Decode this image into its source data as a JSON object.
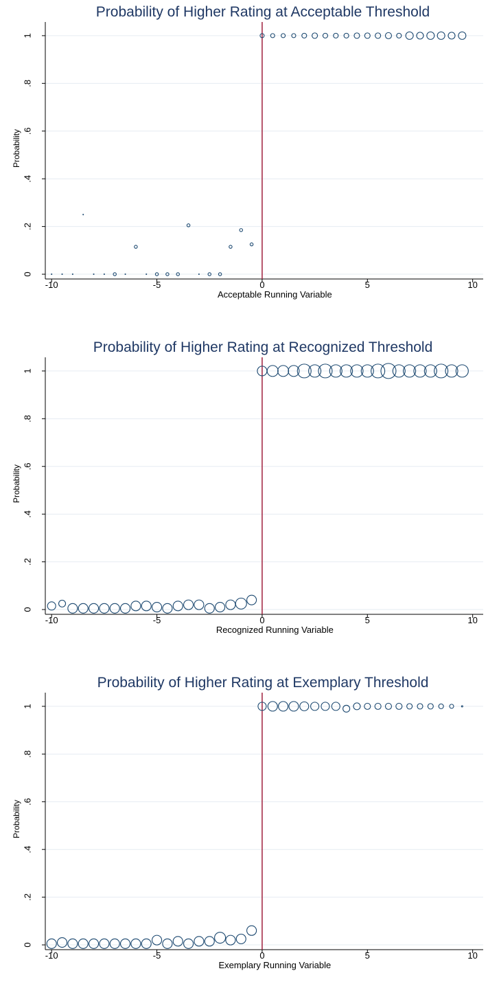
{
  "chart_data": [
    {
      "type": "scatter",
      "title": "Probability of Higher Rating at Acceptable Threshold",
      "xlabel": "Acceptable Running Variable",
      "ylabel": "Probability",
      "xlim": [
        -10.3,
        10.5
      ],
      "ylim": [
        -0.02,
        1.04
      ],
      "xticks": [
        -10,
        -5,
        0,
        5,
        10
      ],
      "xtick_labels": [
        "-10",
        "-5",
        "0",
        "5",
        "10"
      ],
      "yticks": [
        0,
        0.2,
        0.4,
        0.6,
        0.8,
        1
      ],
      "ytick_labels": [
        "0",
        ".2",
        ".4",
        ".6",
        ".8",
        "1"
      ],
      "grid": true,
      "cutoff": 0,
      "colors": {
        "markers": "#1a476f",
        "cutoff": "#a0203c",
        "title": "#1f3864",
        "grid": "#e6ecf2"
      },
      "points": {
        "x": [
          -10,
          -9.5,
          -9,
          -8.5,
          -8,
          -7.5,
          -7,
          -6.5,
          -6,
          -5.5,
          -5,
          -4.5,
          -4,
          -3.5,
          -3,
          -2.5,
          -2,
          -1.5,
          -1,
          -0.5,
          0,
          0.5,
          1,
          1.5,
          2,
          2.5,
          3,
          3.5,
          4,
          4.5,
          5,
          5.5,
          6,
          6.5,
          7,
          7.5,
          8,
          8.5,
          9,
          9.5
        ],
        "y": [
          0,
          0,
          0,
          0.25,
          0,
          0,
          0,
          0,
          0.115,
          0,
          0,
          0,
          0,
          0.205,
          0,
          0,
          0,
          0.115,
          0.185,
          0.125,
          1,
          1,
          1,
          1,
          1,
          1,
          1,
          1,
          1,
          1,
          1,
          1,
          1,
          1,
          1,
          1,
          1,
          1,
          1,
          1
        ],
        "size": [
          0.5,
          0.5,
          0.5,
          0.5,
          0.5,
          0.5,
          2.2,
          0.5,
          2.2,
          0.5,
          2.2,
          2.2,
          2.2,
          2.2,
          0.5,
          2.2,
          2.2,
          2.2,
          2.2,
          2.2,
          3,
          3,
          3,
          3,
          3.5,
          4,
          3.5,
          3.5,
          3.5,
          4,
          4,
          4,
          4.5,
          3.5,
          5.5,
          5,
          5.5,
          5.5,
          5,
          5.5
        ]
      }
    },
    {
      "type": "scatter",
      "title": "Probability of Higher Rating at Recognized Threshold",
      "xlabel": "Recognized Running Variable",
      "ylabel": "Probability",
      "xlim": [
        -10.3,
        10.5
      ],
      "ylim": [
        -0.02,
        1.04
      ],
      "xticks": [
        -10,
        -5,
        0,
        5,
        10
      ],
      "xtick_labels": [
        "-10",
        "-5",
        "0",
        "5",
        "10"
      ],
      "yticks": [
        0,
        0.2,
        0.4,
        0.6,
        0.8,
        1
      ],
      "ytick_labels": [
        "0",
        ".2",
        ".4",
        ".6",
        ".8",
        "1"
      ],
      "grid": true,
      "cutoff": 0,
      "colors": {
        "markers": "#1a476f",
        "cutoff": "#a0203c",
        "title": "#1f3864",
        "grid": "#e6ecf2"
      },
      "points": {
        "x": [
          -10,
          -9.5,
          -9,
          -8.5,
          -8,
          -7.5,
          -7,
          -6.5,
          -6,
          -5.5,
          -5,
          -4.5,
          -4,
          -3.5,
          -3,
          -2.5,
          -2,
          -1.5,
          -1,
          -0.5,
          0,
          0.5,
          1,
          1.5,
          2,
          2.5,
          3,
          3.5,
          4,
          4.5,
          5,
          5.5,
          6,
          6.5,
          7,
          7.5,
          8,
          8.5,
          9,
          9.5
        ],
        "y": [
          0.015,
          0.025,
          0.005,
          0.005,
          0.005,
          0.005,
          0.005,
          0.005,
          0.015,
          0.015,
          0.01,
          0.005,
          0.015,
          0.02,
          0.02,
          0.005,
          0.01,
          0.02,
          0.025,
          0.04,
          1,
          1,
          1,
          1,
          1,
          1,
          1,
          1,
          1,
          1,
          1,
          1,
          1,
          1,
          1,
          1,
          1,
          1,
          1,
          1
        ],
        "size": [
          6,
          5,
          7,
          7,
          7,
          7,
          7,
          7,
          7,
          7,
          7,
          7,
          7,
          7,
          7,
          7,
          7,
          7,
          8,
          7,
          7,
          8,
          8,
          8,
          10,
          9,
          10,
          9,
          9,
          9,
          9,
          10,
          11,
          9,
          9,
          9,
          9,
          10,
          9,
          9
        ]
      }
    },
    {
      "type": "scatter",
      "title": "Probability of Higher Rating at Exemplary Threshold",
      "xlabel": "Exemplary Running Variable",
      "ylabel": "Probability",
      "xlim": [
        -10.3,
        10.5
      ],
      "ylim": [
        -0.02,
        1.04
      ],
      "xticks": [
        -10,
        -5,
        0,
        5,
        10
      ],
      "xtick_labels": [
        "-10",
        "-5",
        "0",
        "5",
        "10"
      ],
      "yticks": [
        0,
        0.2,
        0.4,
        0.6,
        0.8,
        1
      ],
      "ytick_labels": [
        "0",
        ".2",
        ".4",
        ".6",
        ".8",
        "1"
      ],
      "grid": true,
      "cutoff": 0,
      "colors": {
        "markers": "#1a476f",
        "cutoff": "#a0203c",
        "title": "#1f3864",
        "grid": "#e6ecf2"
      },
      "points": {
        "x": [
          -10,
          -9.5,
          -9,
          -8.5,
          -8,
          -7.5,
          -7,
          -6.5,
          -6,
          -5.5,
          -5,
          -4.5,
          -4,
          -3.5,
          -3,
          -2.5,
          -2,
          -1.5,
          -1,
          -0.5,
          0,
          0.5,
          1,
          1.5,
          2,
          2.5,
          3,
          3.5,
          4,
          4.5,
          5,
          5.5,
          6,
          6.5,
          7,
          7.5,
          8,
          8.5,
          9,
          9.5
        ],
        "y": [
          0.005,
          0.01,
          0.005,
          0.005,
          0.005,
          0.005,
          0.005,
          0.005,
          0.005,
          0.005,
          0.02,
          0.005,
          0.015,
          0.005,
          0.015,
          0.015,
          0.03,
          0.02,
          0.025,
          0.06,
          1,
          1,
          1,
          1,
          1,
          1,
          1,
          1,
          0.99,
          1,
          1,
          1,
          1,
          1,
          1,
          1,
          1,
          1,
          1,
          1
        ],
        "size": [
          7,
          7,
          7,
          7,
          7,
          7,
          7,
          7,
          7,
          7,
          7,
          7,
          7,
          7,
          7,
          7,
          8,
          7,
          7,
          7,
          6,
          7,
          7,
          7,
          6.5,
          6,
          6,
          6,
          5,
          5,
          4.5,
          4.5,
          4.5,
          4.5,
          4,
          4,
          4,
          3.5,
          3,
          1
        ]
      }
    }
  ]
}
